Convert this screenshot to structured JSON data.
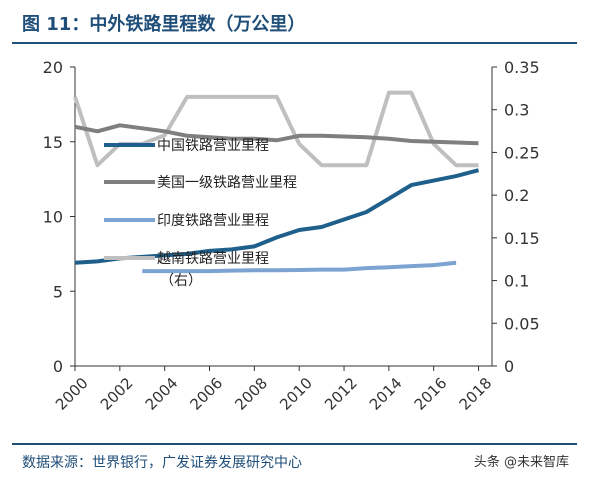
{
  "header": {
    "title": "图 11：中外铁路里程数（万公里）"
  },
  "footer": {
    "source": "数据来源：世界银行，广发证券发展研究中心",
    "watermark": "头条 @未来智库"
  },
  "chart_data": {
    "type": "line",
    "x": [
      2000,
      2001,
      2002,
      2003,
      2004,
      2005,
      2006,
      2007,
      2008,
      2009,
      2010,
      2011,
      2012,
      2013,
      2014,
      2015,
      2016,
      2017,
      2018
    ],
    "xticks": [
      "2000",
      "2002",
      "2004",
      "2006",
      "2008",
      "2010",
      "2012",
      "2014",
      "2016",
      "2018"
    ],
    "ylim_left": [
      0,
      20
    ],
    "yticks_left": [
      "0",
      "5",
      "10",
      "15",
      "20"
    ],
    "ylim_right": [
      0,
      0.35
    ],
    "yticks_right": [
      "0",
      "0.05",
      "0.1",
      "0.15",
      "0.2",
      "0.25",
      "0.3",
      "0.35"
    ],
    "series": [
      {
        "name": "中国铁路营业里程",
        "axis": "left",
        "color": "#1f5f8b",
        "x": [
          2000,
          2001,
          2002,
          2003,
          2004,
          2005,
          2006,
          2007,
          2008,
          2009,
          2010,
          2011,
          2012,
          2013,
          2014,
          2015,
          2016,
          2017,
          2018
        ],
        "values": [
          6.9,
          7.0,
          7.2,
          7.3,
          7.4,
          7.5,
          7.7,
          7.8,
          8.0,
          8.6,
          9.1,
          9.3,
          9.8,
          10.3,
          11.2,
          12.1,
          12.4,
          12.7,
          13.1
        ]
      },
      {
        "name": "美国一级铁路营业里程",
        "axis": "left",
        "color": "#7f7f7f",
        "x": [
          2000,
          2001,
          2002,
          2003,
          2004,
          2005,
          2006,
          2007,
          2008,
          2009,
          2010,
          2011,
          2012,
          2013,
          2014,
          2015,
          2016,
          2017,
          2018
        ],
        "values": [
          16.0,
          15.7,
          16.1,
          15.9,
          15.7,
          15.4,
          15.3,
          15.2,
          15.2,
          15.1,
          15.4,
          15.4,
          15.35,
          15.3,
          15.2,
          15.05,
          15.0,
          14.95,
          14.9
        ]
      },
      {
        "name": "印度铁路营业里程",
        "axis": "left",
        "color": "#7da3d3",
        "x": [
          2003,
          2004,
          2005,
          2006,
          2007,
          2008,
          2009,
          2010,
          2011,
          2012,
          2013,
          2014,
          2015,
          2016,
          2017
        ],
        "values": [
          6.35,
          6.35,
          6.35,
          6.35,
          6.38,
          6.4,
          6.4,
          6.42,
          6.45,
          6.45,
          6.55,
          6.6,
          6.68,
          6.75,
          6.9
        ]
      },
      {
        "name": "越南铁路营业里程",
        "name_suffix": "（右）",
        "axis": "right",
        "color": "#bfbfbf",
        "x": [
          2000,
          2001,
          2002,
          2003,
          2004,
          2005,
          2006,
          2007,
          2008,
          2009,
          2010,
          2011,
          2012,
          2013,
          2014,
          2015,
          2016,
          2017,
          2018
        ],
        "values": [
          0.315,
          0.235,
          0.26,
          0.26,
          0.27,
          0.315,
          0.315,
          0.315,
          0.315,
          0.315,
          0.26,
          0.235,
          0.235,
          0.235,
          0.32,
          0.32,
          0.26,
          0.235,
          0.235
        ]
      }
    ]
  }
}
